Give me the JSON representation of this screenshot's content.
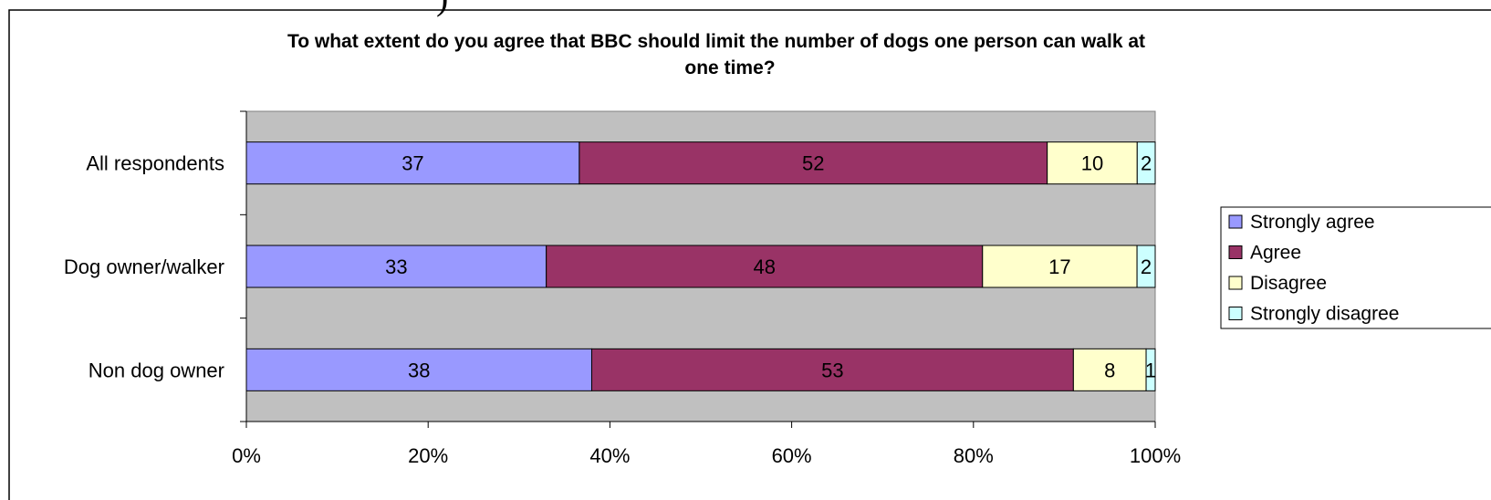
{
  "chart_data": {
    "type": "bar",
    "orientation": "horizontal",
    "stacked": "percent",
    "title_lines": [
      "To what extent do you agree that BBC should limit the number of dogs one person can walk at",
      "one time?"
    ],
    "categories": [
      "All respondents",
      "Dog owner/walker",
      "Non dog owner"
    ],
    "series": [
      {
        "name": "Strongly agree",
        "color": "#9999ff",
        "values": [
          37,
          33,
          38
        ],
        "labels": [
          "37",
          "33",
          "38"
        ]
      },
      {
        "name": "Agree",
        "color": "#993366",
        "values": [
          52,
          48,
          53
        ],
        "labels": [
          "52",
          "48",
          "53"
        ]
      },
      {
        "name": "Disagree",
        "color": "#ffffcc",
        "values": [
          10,
          17,
          8
        ],
        "labels": [
          "10",
          "17",
          "8"
        ]
      },
      {
        "name": "Strongly disagree",
        "color": "#ccffff",
        "values": [
          2,
          2,
          1
        ],
        "labels": [
          "2",
          "2",
          "1"
        ]
      }
    ],
    "x_ticks": [
      "0%",
      "20%",
      "40%",
      "60%",
      "80%",
      "100%"
    ],
    "xlim": [
      0,
      100
    ],
    "plot_background": "#c0c0c0",
    "grid": false,
    "legend_position": "right"
  }
}
